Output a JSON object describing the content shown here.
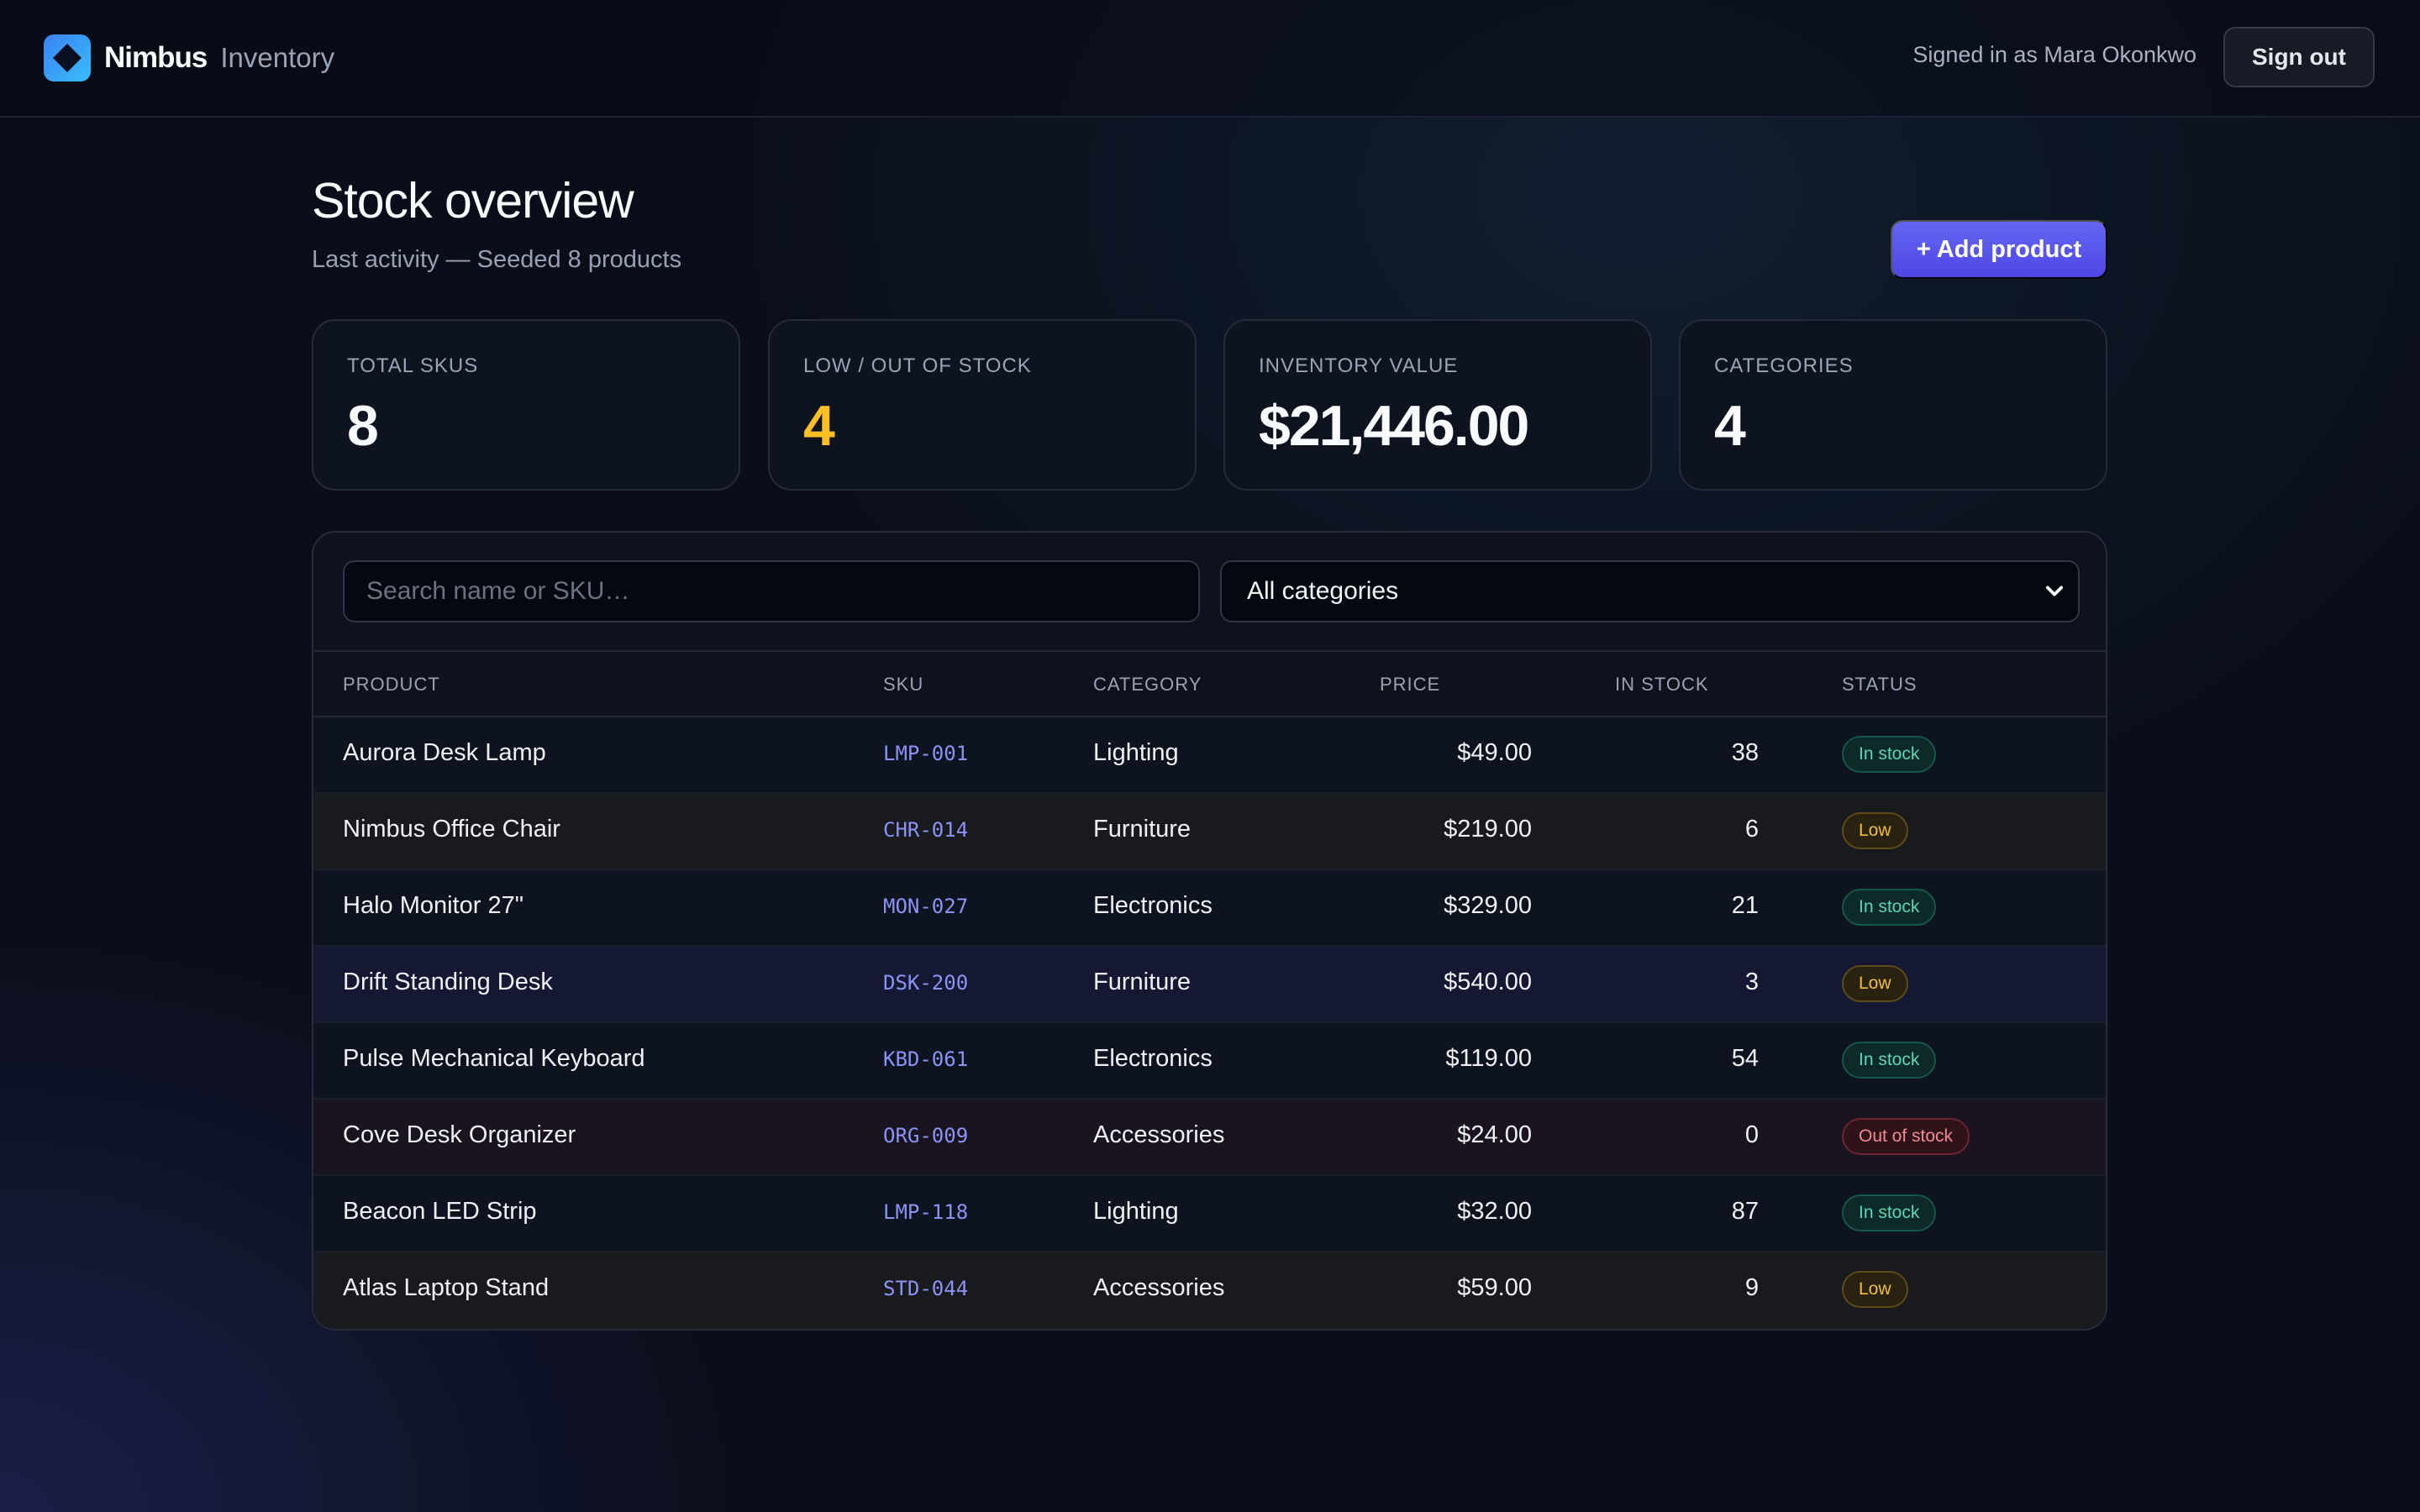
{
  "header": {
    "brand": "Nimbus",
    "product": "Inventory",
    "signed_in": "Signed in as Mara Okonkwo",
    "sign_out_label": "Sign out"
  },
  "page": {
    "title": "Stock overview",
    "subtitle": "Last activity — Seeded 8 products",
    "add_label": "+ Add product"
  },
  "stats": [
    {
      "label": "TOTAL SKUS",
      "value": "8"
    },
    {
      "label": "LOW / OUT OF STOCK",
      "value": "4",
      "color": "#fbbf24"
    },
    {
      "label": "INVENTORY VALUE",
      "value": "$21,446.00"
    },
    {
      "label": "CATEGORIES",
      "value": "4"
    }
  ],
  "filters": {
    "search_placeholder": "Search name or SKU…",
    "search_value": "",
    "category_selected": "All categories"
  },
  "table": {
    "columns": [
      "PRODUCT",
      "SKU",
      "CATEGORY",
      "PRICE",
      "IN STOCK",
      "STATUS"
    ],
    "rows": [
      {
        "product": "Aurora Desk Lamp",
        "sku": "LMP-001",
        "category": "Lighting",
        "price": "$49.00",
        "stock": "38",
        "status": "In stock"
      },
      {
        "product": "Nimbus Office Chair",
        "sku": "CHR-014",
        "category": "Furniture",
        "price": "$219.00",
        "stock": "6",
        "status": "Low"
      },
      {
        "product": "Halo Monitor 27\"",
        "sku": "MON-027",
        "category": "Electronics",
        "price": "$329.00",
        "stock": "21",
        "status": "In stock"
      },
      {
        "product": "Drift Standing Desk",
        "sku": "DSK-200",
        "category": "Furniture",
        "price": "$540.00",
        "stock": "3",
        "status": "Low"
      },
      {
        "product": "Pulse Mechanical Keyboard",
        "sku": "KBD-061",
        "category": "Electronics",
        "price": "$119.00",
        "stock": "54",
        "status": "In stock"
      },
      {
        "product": "Cove Desk Organizer",
        "sku": "ORG-009",
        "category": "Accessories",
        "price": "$24.00",
        "stock": "0",
        "status": "Out of stock"
      },
      {
        "product": "Beacon LED Strip",
        "sku": "LMP-118",
        "category": "Lighting",
        "price": "$32.00",
        "stock": "87",
        "status": "In stock"
      },
      {
        "product": "Atlas Laptop Stand",
        "sku": "STD-044",
        "category": "Accessories",
        "price": "$59.00",
        "stock": "9",
        "status": "Low"
      }
    ]
  },
  "colors": {
    "accent": "#6366f1",
    "warning": "#fbbf24",
    "in_stock": "#5dd6b4",
    "low": "#f2bf3c",
    "out_of_stock": "#f08b95"
  }
}
